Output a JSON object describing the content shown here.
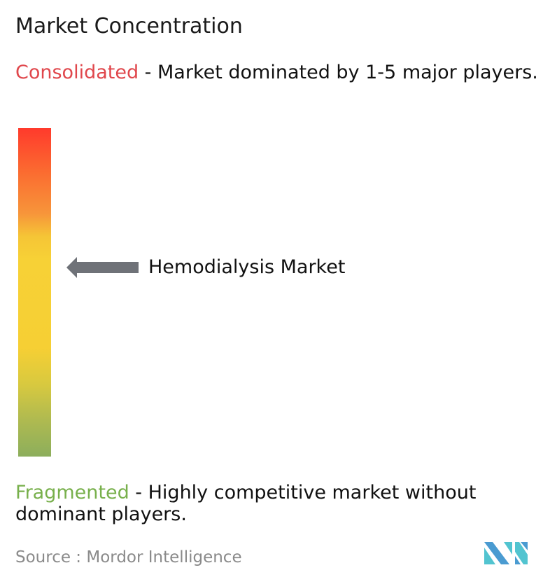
{
  "title": "Market Concentration",
  "consolidated": {
    "label": "Consolidated",
    "description": " - Market dominated by 1-5 major players.",
    "color": "#e0474c"
  },
  "fragmented": {
    "label": "Fragmented",
    "description": " - Highly competitive market without dominant players.",
    "color": "#78b04c"
  },
  "scale": {
    "top_color": "#ff3a2c",
    "middle_color": "#f7d136",
    "bottom_color": "#8cae5c"
  },
  "marker": {
    "label": "Hemodialysis Market",
    "arrow_icon": "arrow-left-icon",
    "color": "#6f7278",
    "position_from_consolidated_pct": 42
  },
  "source": "Source :  Mordor Intelligence",
  "logo": {
    "name": "Mordor Intelligence logo",
    "colors": [
      "#4a9bd1",
      "#52c4d0"
    ]
  }
}
